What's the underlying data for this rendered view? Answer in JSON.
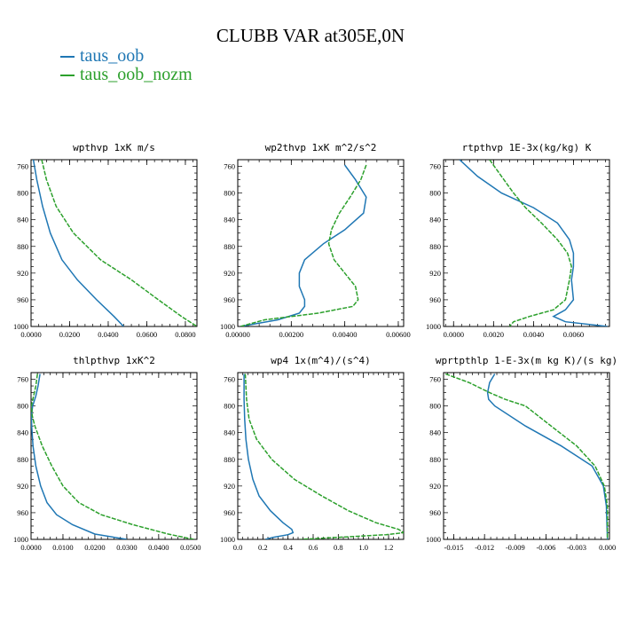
{
  "title": "CLUBB VAR at305E,0N",
  "legend": [
    {
      "label": "taus_oob",
      "color": "#1f77b4",
      "dash": false
    },
    {
      "label": "taus_oob_nozm",
      "color": "#2ca02c",
      "dash": true
    }
  ],
  "chart_data": [
    {
      "type": "line",
      "title": "wpthvp  1xK m/s",
      "xlim": [
        0,
        0.086
      ],
      "ylim": [
        1000,
        750
      ],
      "y_reversed": true,
      "xticks": [
        0,
        0.02,
        0.04,
        0.06,
        0.08
      ],
      "xtick_labels": [
        "0.0000",
        "0.0200",
        "0.0400",
        "0.0600",
        "0.0800"
      ],
      "yticks": [
        760,
        800,
        840,
        880,
        920,
        960,
        1000
      ],
      "ytick_labels": [
        "760",
        "800",
        "840",
        "880",
        "920",
        "960",
        "1000"
      ],
      "series": [
        {
          "name": "taus_oob",
          "x": [
            0.0012,
            0.003,
            0.006,
            0.01,
            0.016,
            0.024,
            0.034,
            0.043,
            0.048
          ],
          "y": [
            750,
            780,
            820,
            860,
            900,
            930,
            960,
            985,
            1000
          ]
        },
        {
          "name": "taus_oob_nozm",
          "x": [
            0.0055,
            0.008,
            0.013,
            0.022,
            0.036,
            0.052,
            0.066,
            0.078,
            0.086
          ],
          "y": [
            750,
            780,
            820,
            860,
            900,
            930,
            960,
            985,
            1000
          ]
        }
      ]
    },
    {
      "type": "line",
      "title": "wp2thvp  1xK m^2/s^2",
      "xlim": [
        0,
        0.0062
      ],
      "ylim": [
        1000,
        750
      ],
      "y_reversed": true,
      "xticks": [
        0,
        0.002,
        0.004,
        0.006
      ],
      "xtick_labels": [
        "0.00000",
        "0.00200",
        "0.00400",
        "0.00600"
      ],
      "yticks": [
        760,
        800,
        840,
        880,
        920,
        960,
        1000
      ],
      "ytick_labels": [
        "760",
        "800",
        "840",
        "880",
        "920",
        "960",
        "1000"
      ],
      "series": [
        {
          "name": "taus_oob",
          "x": [
            0.004,
            0.0044,
            0.0048,
            0.0047,
            0.004,
            0.0032,
            0.0025,
            0.0023,
            0.0023,
            0.0025,
            0.0025,
            0.0023,
            0.0015,
            0.0001
          ],
          "y": [
            758,
            780,
            806,
            830,
            855,
            876,
            900,
            920,
            940,
            960,
            970,
            980,
            990,
            1000
          ]
        },
        {
          "name": "taus_oob_nozm",
          "x": [
            0.0048,
            0.0046,
            0.0042,
            0.0038,
            0.0035,
            0.0034,
            0.0036,
            0.004,
            0.0044,
            0.0045,
            0.0043,
            0.003,
            0.001,
            0.0001
          ],
          "y": [
            758,
            780,
            806,
            830,
            855,
            876,
            900,
            920,
            940,
            960,
            970,
            980,
            990,
            1000
          ]
        }
      ]
    },
    {
      "type": "line",
      "title": "rtpthvp  1E-3x(kg/kg) K",
      "xlim": [
        -0.0005,
        0.0078
      ],
      "ylim": [
        1000,
        750
      ],
      "y_reversed": true,
      "xticks": [
        0,
        0.002,
        0.004,
        0.006
      ],
      "xtick_labels": [
        "0.0000",
        "0.0020",
        "0.0040",
        "0.0060"
      ],
      "yticks": [
        760,
        800,
        840,
        880,
        920,
        960,
        1000
      ],
      "ytick_labels": [
        "760",
        "800",
        "840",
        "880",
        "920",
        "960",
        "1000"
      ],
      "series": [
        {
          "name": "taus_oob",
          "x": [
            0.0003,
            0.0012,
            0.0024,
            0.004,
            0.0052,
            0.0058,
            0.006,
            0.006,
            0.0059,
            0.006,
            0.0056,
            0.005,
            0.0056,
            0.0077
          ],
          "y": [
            750,
            775,
            800,
            822,
            845,
            870,
            890,
            910,
            930,
            960,
            975,
            985,
            993,
            1000
          ]
        },
        {
          "name": "taus_oob_nozm",
          "x": [
            0.0018,
            0.0024,
            0.003,
            0.0036,
            0.0044,
            0.0052,
            0.0057,
            0.0059,
            0.0058,
            0.0056,
            0.005,
            0.0038,
            0.003,
            0.0028
          ],
          "y": [
            750,
            775,
            800,
            822,
            845,
            870,
            890,
            910,
            930,
            960,
            975,
            985,
            993,
            1000
          ]
        }
      ]
    },
    {
      "type": "line",
      "title": "thlpthvp  1xK^2",
      "xlim": [
        0,
        0.052
      ],
      "ylim": [
        1000,
        750
      ],
      "y_reversed": true,
      "xticks": [
        0,
        0.01,
        0.02,
        0.03,
        0.04,
        0.05
      ],
      "xtick_labels": [
        "0.0000",
        "0.0100",
        "0.0200",
        "0.0300",
        "0.0400",
        "0.0500"
      ],
      "yticks": [
        760,
        800,
        840,
        880,
        920,
        960,
        1000
      ],
      "ytick_labels": [
        "760",
        "800",
        "840",
        "880",
        "920",
        "960",
        "1000"
      ],
      "series": [
        {
          "name": "taus_oob",
          "x": [
            0.0028,
            0.0022,
            0.0015,
            0.0005,
            0.0001,
            0.0002,
            0.0006,
            0.0015,
            0.003,
            0.005,
            0.008,
            0.013,
            0.02,
            0.03
          ],
          "y": [
            752,
            770,
            785,
            800,
            815,
            830,
            860,
            890,
            920,
            945,
            963,
            978,
            992,
            1000
          ]
        },
        {
          "name": "taus_oob_nozm",
          "x": [
            0.002,
            0.0015,
            0.0008,
            0.0001,
            0.0004,
            0.0012,
            0.0035,
            0.0065,
            0.01,
            0.015,
            0.022,
            0.032,
            0.043,
            0.051
          ],
          "y": [
            752,
            770,
            785,
            800,
            815,
            830,
            860,
            890,
            920,
            945,
            963,
            978,
            992,
            1000
          ]
        }
      ]
    },
    {
      "type": "line",
      "title": "wp4  1x(m^4)/(s^4)",
      "xlim": [
        0,
        1.32
      ],
      "ylim": [
        1000,
        750
      ],
      "y_reversed": true,
      "xticks": [
        0,
        0.2,
        0.4,
        0.6,
        0.8,
        1.0,
        1.2
      ],
      "xtick_labels": [
        "0.0",
        "0.2",
        "0.4",
        "0.6",
        "0.8",
        "1.0",
        "1.2"
      ],
      "yticks": [
        760,
        800,
        840,
        880,
        920,
        960,
        1000
      ],
      "ytick_labels": [
        "760",
        "800",
        "840",
        "880",
        "920",
        "960",
        "1000"
      ],
      "series": [
        {
          "name": "taus_oob",
          "x": [
            0.05,
            0.05,
            0.055,
            0.065,
            0.085,
            0.12,
            0.17,
            0.26,
            0.36,
            0.43,
            0.44,
            0.4,
            0.28,
            0.22
          ],
          "y": [
            752,
            790,
            820,
            850,
            880,
            910,
            935,
            957,
            975,
            985,
            990,
            993,
            997,
            1000
          ]
        },
        {
          "name": "taus_oob_nozm",
          "x": [
            0.06,
            0.07,
            0.09,
            0.15,
            0.27,
            0.45,
            0.67,
            0.88,
            1.1,
            1.28,
            1.32,
            1.18,
            0.8,
            0.5
          ],
          "y": [
            752,
            790,
            820,
            850,
            880,
            910,
            935,
            957,
            975,
            985,
            990,
            993,
            997,
            1000
          ]
        }
      ]
    },
    {
      "type": "line",
      "title": "wprtpthlp  1-E-3x(m kg K)/(s kg)",
      "xlim": [
        -0.016,
        0.0002
      ],
      "ylim": [
        1000,
        750
      ],
      "y_reversed": true,
      "xticks": [
        -0.015,
        -0.012,
        -0.009,
        -0.006,
        -0.003,
        0.0
      ],
      "xtick_labels": [
        "-0.015",
        "-0.012",
        "-0.009",
        "-0.006",
        "-0.003",
        "0.000"
      ],
      "yticks": [
        760,
        800,
        840,
        880,
        920,
        960,
        1000
      ],
      "ytick_labels": [
        "760",
        "800",
        "840",
        "880",
        "920",
        "960",
        "1000"
      ],
      "series": [
        {
          "name": "taus_oob",
          "x": [
            -0.011,
            -0.0115,
            -0.0117,
            -0.0116,
            -0.011,
            -0.008,
            -0.0045,
            -0.0015,
            -0.0004,
            -0.0001,
            0.0
          ],
          "y": [
            752,
            765,
            780,
            790,
            800,
            830,
            860,
            890,
            920,
            950,
            1000
          ]
        },
        {
          "name": "taus_oob_nozm",
          "x": [
            -0.0158,
            -0.0135,
            -0.0115,
            -0.01,
            -0.008,
            -0.0055,
            -0.003,
            -0.0012,
            -0.0003,
            0.0,
            0.0
          ],
          "y": [
            752,
            765,
            780,
            790,
            800,
            830,
            860,
            890,
            920,
            950,
            1000
          ]
        }
      ]
    }
  ]
}
